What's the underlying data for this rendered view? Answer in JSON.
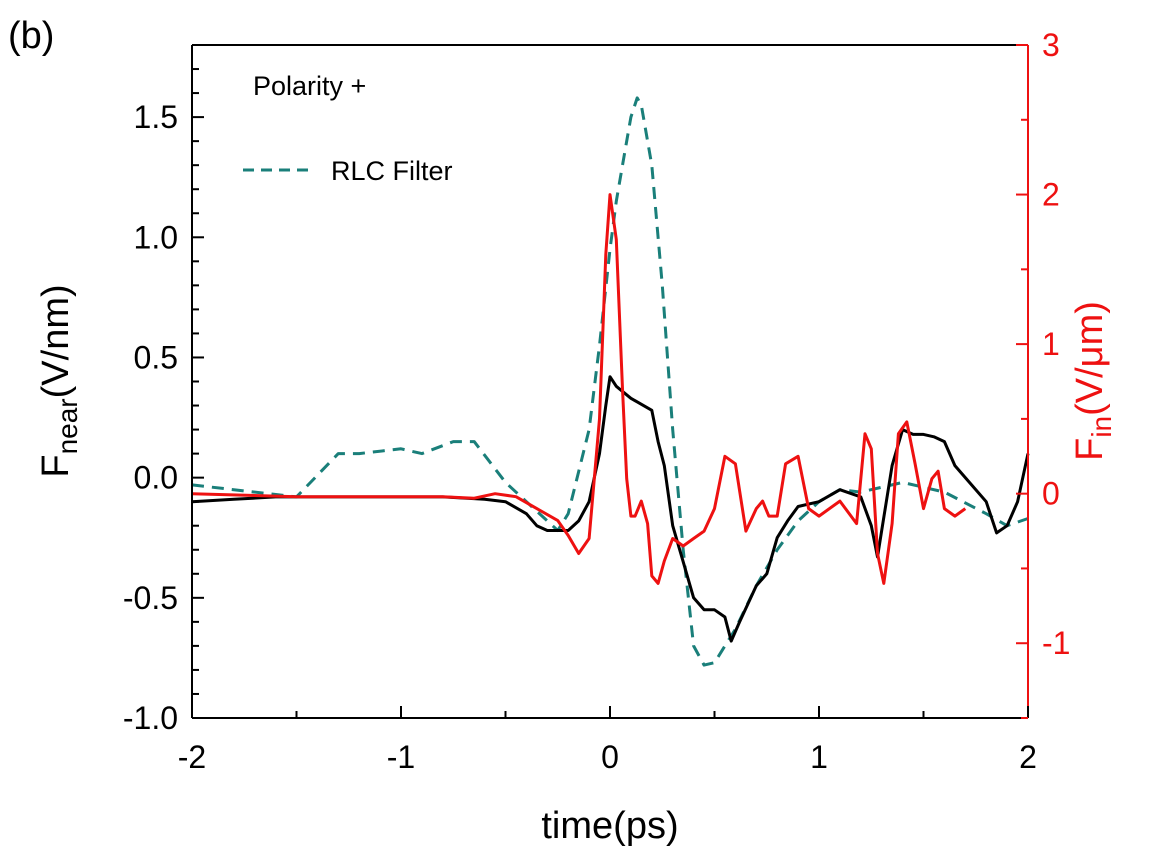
{
  "chart_data": {
    "type": "line",
    "panel_label": "(b)",
    "annotation": "Polarity +",
    "xlabel": "time(ps)",
    "ylabel_left": {
      "main": "F",
      "sub": "near",
      "rest": "(V/nm)"
    },
    "ylabel_right": {
      "main": "F",
      "sub": "in",
      "rest": "(V/μm)"
    },
    "xlim": [
      -2,
      2
    ],
    "ylim_left": [
      -1.0,
      1.8
    ],
    "ylim_right": [
      -1.5,
      3
    ],
    "x_ticks": [
      "-2",
      "-1",
      "0",
      "1",
      "2"
    ],
    "y_left_ticks": [
      "-1.0",
      "-0.5",
      "0.0",
      "0.5",
      "1.0",
      "1.5"
    ],
    "y_right_ticks": [
      "-1",
      "0",
      "1",
      "2",
      "3"
    ],
    "grid": false,
    "legend": {
      "entries": [
        "RLC Filter"
      ],
      "position": "top-left"
    },
    "colors": {
      "near_field": "#000000",
      "rlc_filter": "#1a7f7a",
      "input_field": "#ee1111",
      "right_axis": "#ee1111"
    },
    "series": [
      {
        "axis": "left",
        "style": "solid",
        "points": [
          [
            -2.0,
            -0.1
          ],
          [
            -1.8,
            -0.09
          ],
          [
            -1.6,
            -0.08
          ],
          [
            -1.4,
            -0.08
          ],
          [
            -1.2,
            -0.08
          ],
          [
            -1.0,
            -0.08
          ],
          [
            -0.8,
            -0.08
          ],
          [
            -0.6,
            -0.09
          ],
          [
            -0.5,
            -0.1
          ],
          [
            -0.4,
            -0.15
          ],
          [
            -0.35,
            -0.2
          ],
          [
            -0.3,
            -0.22
          ],
          [
            -0.2,
            -0.22
          ],
          [
            -0.15,
            -0.18
          ],
          [
            -0.1,
            -0.1
          ],
          [
            -0.05,
            0.1
          ],
          [
            -0.02,
            0.3
          ],
          [
            0.0,
            0.42
          ],
          [
            0.03,
            0.38
          ],
          [
            0.1,
            0.33
          ],
          [
            0.2,
            0.28
          ],
          [
            0.23,
            0.15
          ],
          [
            0.26,
            0.05
          ],
          [
            0.3,
            -0.2
          ],
          [
            0.35,
            -0.35
          ],
          [
            0.4,
            -0.5
          ],
          [
            0.45,
            -0.55
          ],
          [
            0.5,
            -0.55
          ],
          [
            0.55,
            -0.58
          ],
          [
            0.58,
            -0.68
          ],
          [
            0.62,
            -0.6
          ],
          [
            0.7,
            -0.45
          ],
          [
            0.75,
            -0.4
          ],
          [
            0.8,
            -0.25
          ],
          [
            0.85,
            -0.18
          ],
          [
            0.9,
            -0.12
          ],
          [
            1.0,
            -0.1
          ],
          [
            1.1,
            -0.05
          ],
          [
            1.2,
            -0.08
          ],
          [
            1.25,
            -0.2
          ],
          [
            1.28,
            -0.33
          ],
          [
            1.3,
            -0.22
          ],
          [
            1.35,
            0.05
          ],
          [
            1.4,
            0.2
          ],
          [
            1.45,
            0.18
          ],
          [
            1.5,
            0.18
          ],
          [
            1.55,
            0.17
          ],
          [
            1.6,
            0.15
          ],
          [
            1.65,
            0.05
          ],
          [
            1.7,
            0.0
          ],
          [
            1.8,
            -0.1
          ],
          [
            1.85,
            -0.23
          ],
          [
            1.9,
            -0.2
          ],
          [
            1.95,
            -0.1
          ],
          [
            2.0,
            0.1
          ]
        ]
      },
      {
        "name": "RLC Filter",
        "axis": "left",
        "style": "dashed",
        "points": [
          [
            -2.0,
            -0.03
          ],
          [
            -1.8,
            -0.05
          ],
          [
            -1.5,
            -0.08
          ],
          [
            -1.3,
            0.1
          ],
          [
            -1.2,
            0.1
          ],
          [
            -1.0,
            0.12
          ],
          [
            -0.9,
            0.1
          ],
          [
            -0.75,
            0.15
          ],
          [
            -0.65,
            0.15
          ],
          [
            -0.5,
            -0.02
          ],
          [
            -0.4,
            -0.1
          ],
          [
            -0.3,
            -0.18
          ],
          [
            -0.25,
            -0.22
          ],
          [
            -0.2,
            -0.15
          ],
          [
            -0.1,
            0.2
          ],
          [
            -0.05,
            0.55
          ],
          [
            0.0,
            0.95
          ],
          [
            0.03,
            1.15
          ],
          [
            0.06,
            1.3
          ],
          [
            0.1,
            1.5
          ],
          [
            0.13,
            1.58
          ],
          [
            0.15,
            1.55
          ],
          [
            0.2,
            1.3
          ],
          [
            0.25,
            0.8
          ],
          [
            0.3,
            0.2
          ],
          [
            0.35,
            -0.3
          ],
          [
            0.4,
            -0.7
          ],
          [
            0.45,
            -0.78
          ],
          [
            0.5,
            -0.77
          ],
          [
            0.6,
            -0.63
          ],
          [
            0.7,
            -0.45
          ],
          [
            0.8,
            -0.3
          ],
          [
            0.9,
            -0.18
          ],
          [
            1.0,
            -0.1
          ],
          [
            1.1,
            -0.05
          ],
          [
            1.2,
            -0.06
          ],
          [
            1.4,
            -0.02
          ],
          [
            1.6,
            -0.06
          ],
          [
            1.8,
            -0.15
          ],
          [
            1.9,
            -0.2
          ],
          [
            2.0,
            -0.17
          ]
        ]
      },
      {
        "axis": "right",
        "style": "solid",
        "points": [
          [
            -2.0,
            0.0
          ],
          [
            -1.5,
            -0.02
          ],
          [
            -1.0,
            -0.02
          ],
          [
            -0.8,
            -0.02
          ],
          [
            -0.65,
            -0.03
          ],
          [
            -0.55,
            0.0
          ],
          [
            -0.45,
            -0.02
          ],
          [
            -0.35,
            -0.1
          ],
          [
            -0.25,
            -0.18
          ],
          [
            -0.2,
            -0.28
          ],
          [
            -0.15,
            -0.4
          ],
          [
            -0.1,
            -0.3
          ],
          [
            -0.05,
            0.5
          ],
          [
            -0.02,
            1.6
          ],
          [
            0.0,
            2.0
          ],
          [
            0.03,
            1.7
          ],
          [
            0.06,
            0.7
          ],
          [
            0.08,
            0.1
          ],
          [
            0.1,
            -0.15
          ],
          [
            0.12,
            -0.15
          ],
          [
            0.15,
            -0.05
          ],
          [
            0.18,
            -0.2
          ],
          [
            0.2,
            -0.55
          ],
          [
            0.23,
            -0.6
          ],
          [
            0.26,
            -0.45
          ],
          [
            0.3,
            -0.3
          ],
          [
            0.35,
            -0.35
          ],
          [
            0.4,
            -0.3
          ],
          [
            0.45,
            -0.25
          ],
          [
            0.5,
            -0.1
          ],
          [
            0.55,
            0.25
          ],
          [
            0.6,
            0.2
          ],
          [
            0.65,
            -0.25
          ],
          [
            0.7,
            -0.1
          ],
          [
            0.73,
            -0.05
          ],
          [
            0.76,
            -0.15
          ],
          [
            0.8,
            -0.15
          ],
          [
            0.84,
            0.2
          ],
          [
            0.9,
            0.25
          ],
          [
            0.95,
            -0.1
          ],
          [
            1.0,
            -0.15
          ],
          [
            1.1,
            -0.05
          ],
          [
            1.18,
            -0.2
          ],
          [
            1.22,
            0.4
          ],
          [
            1.25,
            0.3
          ],
          [
            1.28,
            -0.4
          ],
          [
            1.31,
            -0.6
          ],
          [
            1.35,
            -0.2
          ],
          [
            1.38,
            0.4
          ],
          [
            1.42,
            0.48
          ],
          [
            1.46,
            0.2
          ],
          [
            1.5,
            -0.1
          ],
          [
            1.54,
            0.1
          ],
          [
            1.57,
            0.15
          ],
          [
            1.6,
            -0.1
          ],
          [
            1.65,
            -0.15
          ],
          [
            1.7,
            -0.1
          ]
        ]
      }
    ]
  }
}
